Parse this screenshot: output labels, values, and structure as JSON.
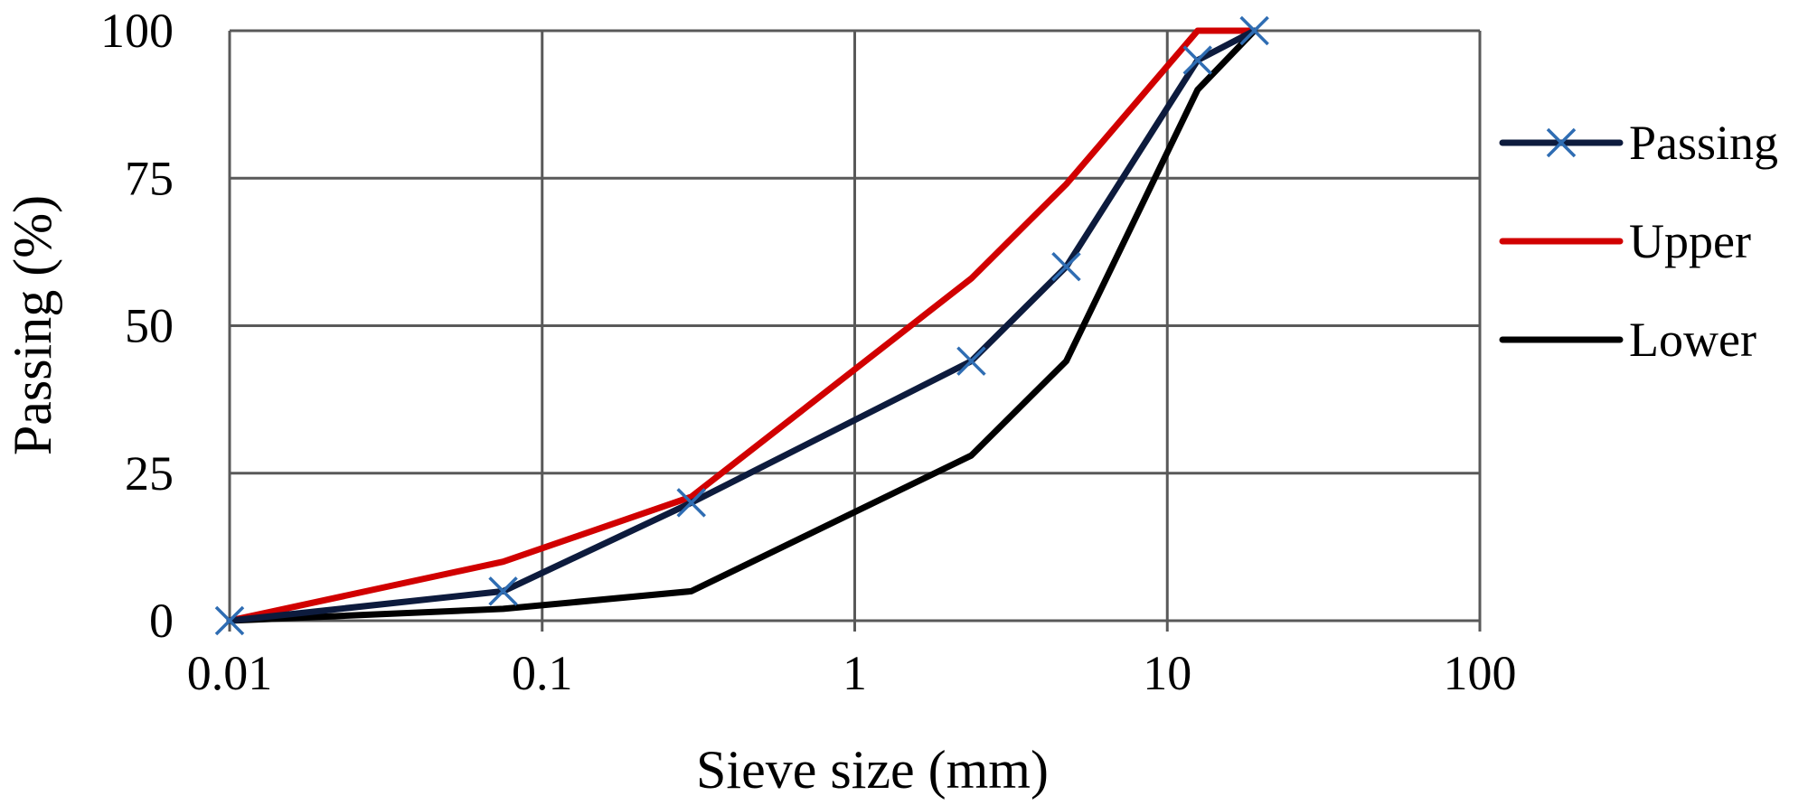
{
  "chart_data": {
    "type": "line",
    "xscale": "log",
    "xlabel": "Sieve size (mm)",
    "ylabel": "Passing (%)",
    "xlim": [
      0.01,
      100
    ],
    "ylim": [
      0,
      100
    ],
    "grid": true,
    "x_ticks": [
      "0.01",
      "0.1",
      "1",
      "10",
      "100"
    ],
    "y_ticks": [
      "0",
      "25",
      "50",
      "75",
      "100"
    ],
    "legend_position": "right",
    "series": [
      {
        "name": "Passing",
        "color": "#0d1b3d",
        "marker": "x",
        "marker_color": "#2f6db3",
        "x": [
          0.01,
          0.075,
          0.3,
          2.36,
          4.75,
          12.5,
          19
        ],
        "y": [
          0,
          5,
          20,
          44,
          60,
          95,
          100
        ]
      },
      {
        "name": "Upper",
        "color": "#d10000",
        "marker": "none",
        "x": [
          0.01,
          0.075,
          0.3,
          2.36,
          4.75,
          12.5,
          19
        ],
        "y": [
          0,
          10,
          21,
          58,
          74,
          100,
          100
        ]
      },
      {
        "name": "Lower",
        "color": "#000000",
        "marker": "none",
        "x": [
          0.01,
          0.075,
          0.3,
          2.36,
          4.75,
          12.5,
          19
        ],
        "y": [
          0,
          2,
          5,
          28,
          44,
          90,
          100
        ]
      }
    ]
  }
}
